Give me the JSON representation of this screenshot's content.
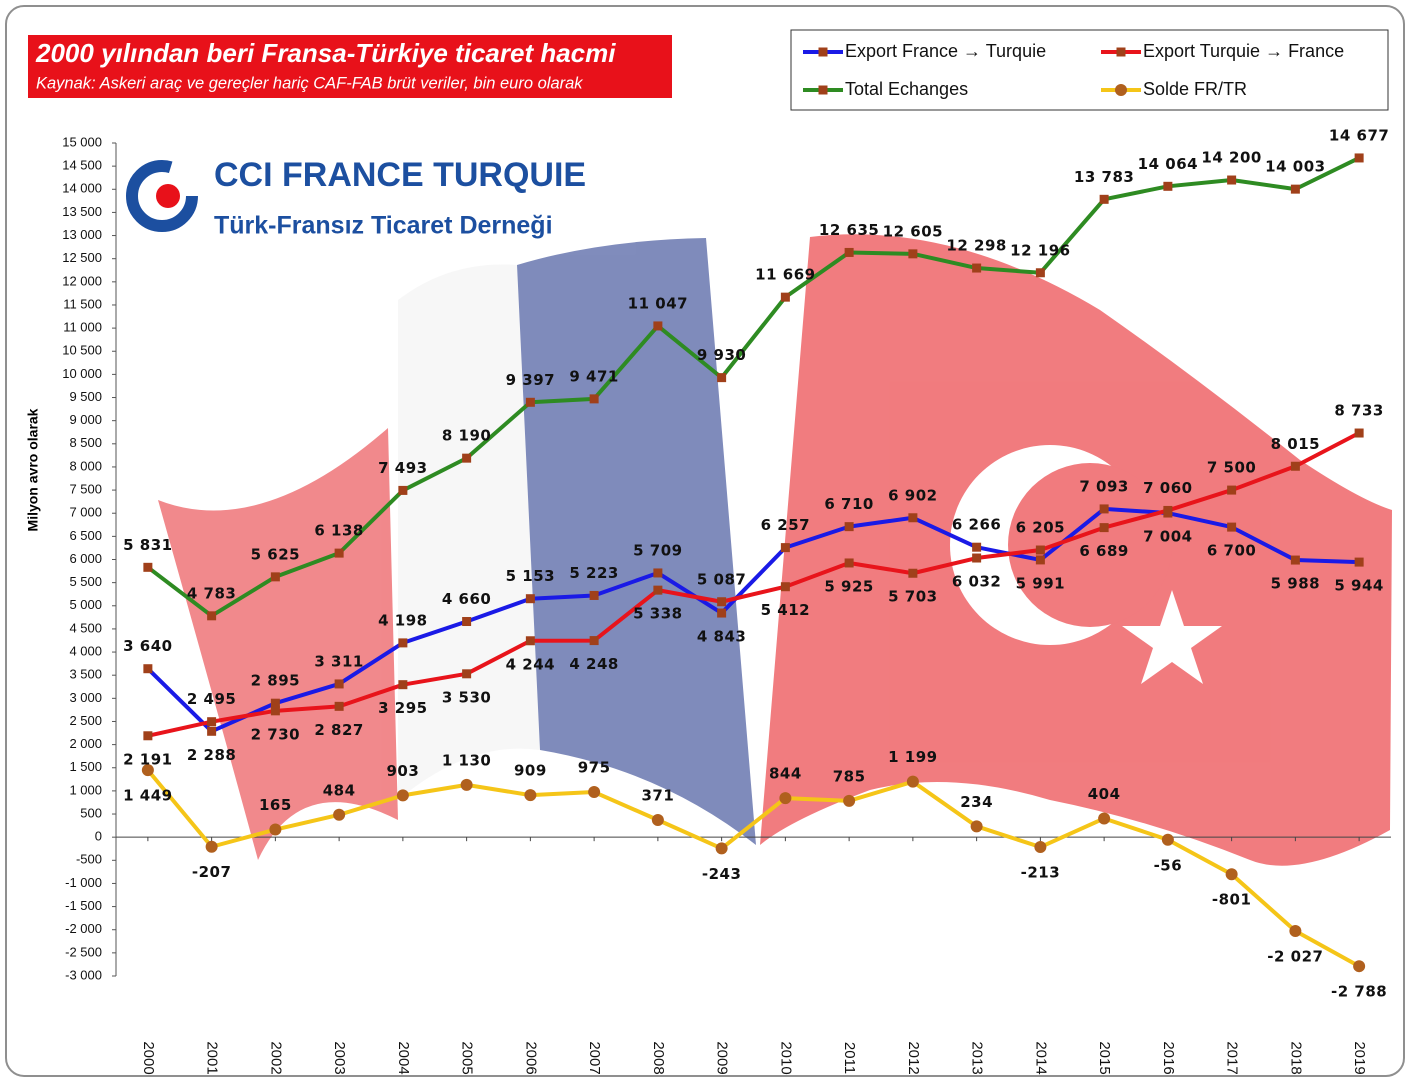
{
  "chart_data": {
    "type": "line",
    "title": "2000 yılından beri Fransa-Türkiye ticaret hacmi",
    "subtitle": "Kaynak: Askeri araç ve gereçler hariç  CAF-FAB brüt veriler, bin euro olarak",
    "logo": {
      "title": "CCI FRANCE TURQUIE",
      "subtitle": "Türk-Fransız Ticaret Derneği"
    },
    "y_label": "Milyon avro olarak",
    "legend": "top-right",
    "grid": false,
    "categories": [
      "2000",
      "2001",
      "2002",
      "2003",
      "2004",
      "2005",
      "2006",
      "2007",
      "2008",
      "2009",
      "2010",
      "2011",
      "2012",
      "2013",
      "2014",
      "2015",
      "2016",
      "2017",
      "2018",
      "2019"
    ],
    "ylim": [
      -3000,
      15000
    ],
    "yticks": [
      {
        "value": -3000,
        "label": "-3 000"
      },
      {
        "value": -2500,
        "label": "-2 500"
      },
      {
        "value": -2000,
        "label": "-2 000"
      },
      {
        "value": -1500,
        "label": "-1 500"
      },
      {
        "value": -1000,
        "label": "-1 000"
      },
      -500,
      0,
      500,
      {
        "value": 1000,
        "label": "1 000"
      },
      {
        "value": 1500,
        "label": "1 500"
      },
      {
        "value": 2000,
        "label": "2 000"
      },
      {
        "value": 2500,
        "label": "2 500"
      },
      {
        "value": 3000,
        "label": "3 000"
      },
      {
        "value": 3500,
        "label": "3 500"
      },
      {
        "value": 4000,
        "label": "4 000"
      },
      {
        "value": 4500,
        "label": "4 500"
      },
      {
        "value": 5000,
        "label": "5 000"
      },
      {
        "value": 5500,
        "label": "5 500"
      },
      {
        "value": 6000,
        "label": "6 000"
      },
      {
        "value": 6500,
        "label": "6 500"
      },
      {
        "value": 7000,
        "label": "7 000"
      },
      {
        "value": 7500,
        "label": "7 500"
      },
      {
        "value": 8000,
        "label": "8 000"
      },
      {
        "value": 8500,
        "label": "8 500"
      },
      {
        "value": 9000,
        "label": "9 000"
      },
      {
        "value": 9500,
        "label": "9 500"
      },
      {
        "value": 10000,
        "label": "10 000"
      },
      {
        "value": 10500,
        "label": "10 500"
      },
      {
        "value": 11000,
        "label": "11 000"
      },
      {
        "value": 11500,
        "label": "11 500"
      },
      {
        "value": 12000,
        "label": "12 000"
      },
      {
        "value": 12500,
        "label": "12 500"
      },
      {
        "value": 13000,
        "label": "13 000"
      },
      {
        "value": 13500,
        "label": "13 500"
      },
      {
        "value": 14000,
        "label": "14 000"
      },
      {
        "value": 14500,
        "label": "14 500"
      },
      {
        "value": 15000,
        "label": "15 000"
      }
    ],
    "series": [
      {
        "name": "Export France → Turquie",
        "color": "#1a1ae6",
        "marker_color": "#a0401a",
        "marker": "square",
        "values": [
          3640,
          2288,
          2895,
          3311,
          4198,
          4660,
          5153,
          5223,
          5709,
          4843,
          6257,
          6710,
          6902,
          6266,
          5991,
          7093,
          7004,
          6700,
          5988,
          5944
        ],
        "value_labels": [
          "3 640",
          "2 288",
          "2 895",
          "3 311",
          "4 198",
          "4 660",
          "5 153",
          "5 223",
          "5 709",
          "4 843",
          "6 257",
          "6 710",
          "6 902",
          "6 266",
          "5 991",
          "7 093",
          "7 004",
          "6 700",
          "5 988",
          "5 944"
        ]
      },
      {
        "name": "Export Turquie → France",
        "color": "#e8141b",
        "marker_color": "#a0401a",
        "marker": "square",
        "values": [
          2191,
          2495,
          2730,
          2827,
          3295,
          3530,
          4244,
          4248,
          5338,
          5087,
          5412,
          5925,
          5703,
          6032,
          6205,
          6689,
          7060,
          7500,
          8015,
          8733
        ],
        "value_labels": [
          "2 191",
          "2 495",
          "2 730",
          "2 827",
          "3 295",
          "3 530",
          "4 244",
          "4 248",
          "5 338",
          "5 087",
          "5 412",
          "5 925",
          "5 703",
          "6 032",
          "6 205",
          "6 689",
          "7 060",
          "7 500",
          "8 015",
          "8 733"
        ]
      },
      {
        "name": "Total Echanges",
        "color": "#2e8b22",
        "marker_color": "#a0401a",
        "marker": "square",
        "values": [
          5831,
          4783,
          5625,
          6138,
          7493,
          8190,
          9397,
          9471,
          11047,
          9930,
          11669,
          12635,
          12605,
          12298,
          12196,
          13783,
          14064,
          14200,
          14003,
          14677
        ],
        "value_labels": [
          "5 831",
          "4 783",
          "5 625",
          "6 138",
          "7 493",
          "8 190",
          "9 397",
          "9 471",
          "11 047",
          "9 930",
          "11 669",
          "12 635",
          "12 605",
          "12 298",
          "12 196",
          "13 783",
          "14 064",
          "14 200",
          "14 003",
          "14 677"
        ]
      },
      {
        "name": "Solde FR/TR",
        "color": "#f5c518",
        "marker_color": "#b0601e",
        "marker": "circle",
        "values": [
          1449,
          -207,
          165,
          484,
          903,
          1130,
          909,
          975,
          371,
          -243,
          844,
          785,
          1199,
          234,
          -213,
          404,
          -56,
          -801,
          -2027,
          -2788
        ],
        "value_labels": [
          "1 449",
          "-207",
          "165",
          "484",
          "903",
          "1 130",
          "909",
          "975",
          "371",
          "-243",
          "844",
          "785",
          "1 199",
          "234",
          "-213",
          "404",
          "-56",
          "-801",
          "-2 027",
          "-2 788"
        ]
      }
    ]
  }
}
